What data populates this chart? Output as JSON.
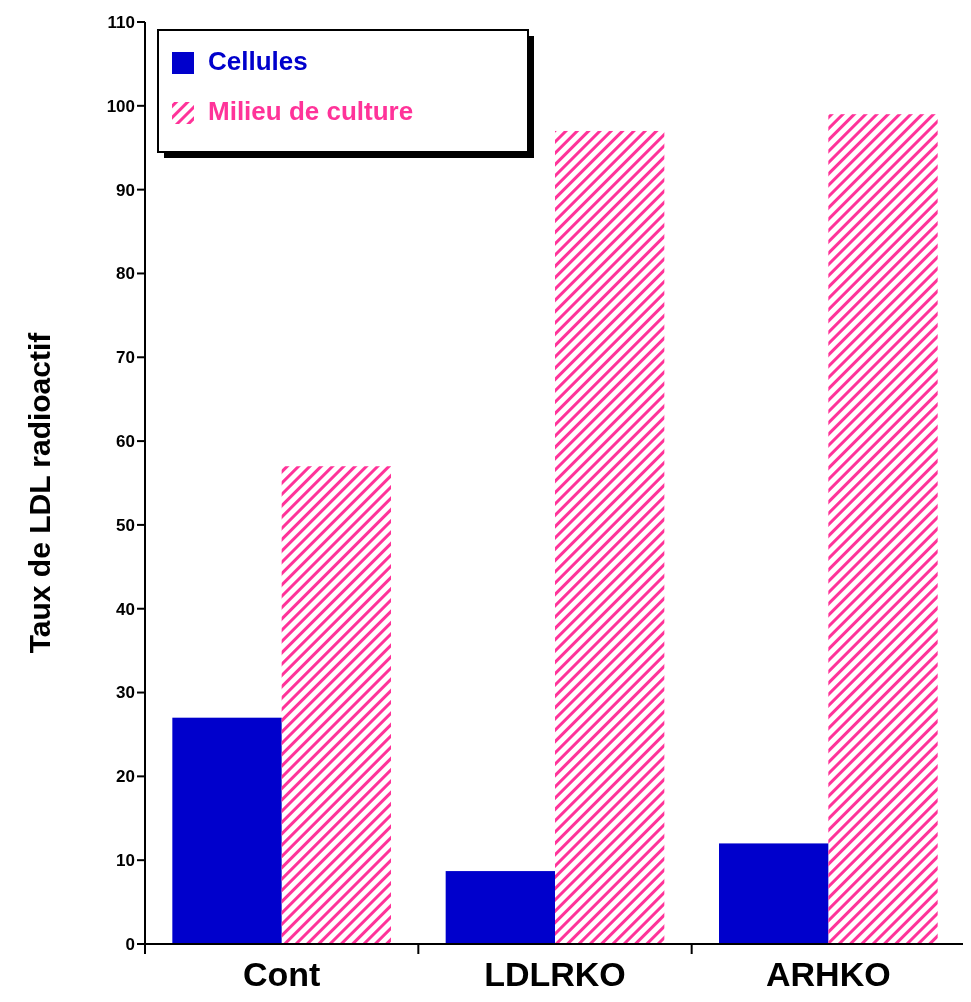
{
  "chart_data": {
    "type": "bar",
    "ylabel": "Taux de LDL radioactif",
    "categories": [
      "Cont",
      "LDLRKO",
      "ARHKO"
    ],
    "series": [
      {
        "name": "Cellules",
        "color": "#0000cc",
        "values": [
          27,
          8.7,
          12
        ]
      },
      {
        "name": "Milieu de culture",
        "color": "#ff3399",
        "values": [
          57,
          97,
          99
        ]
      }
    ],
    "ylim": [
      0,
      110
    ],
    "yticks": [
      0,
      10,
      20,
      30,
      40,
      50,
      60,
      70,
      80,
      90,
      100,
      110
    ],
    "grid": false,
    "legend": "top left"
  }
}
